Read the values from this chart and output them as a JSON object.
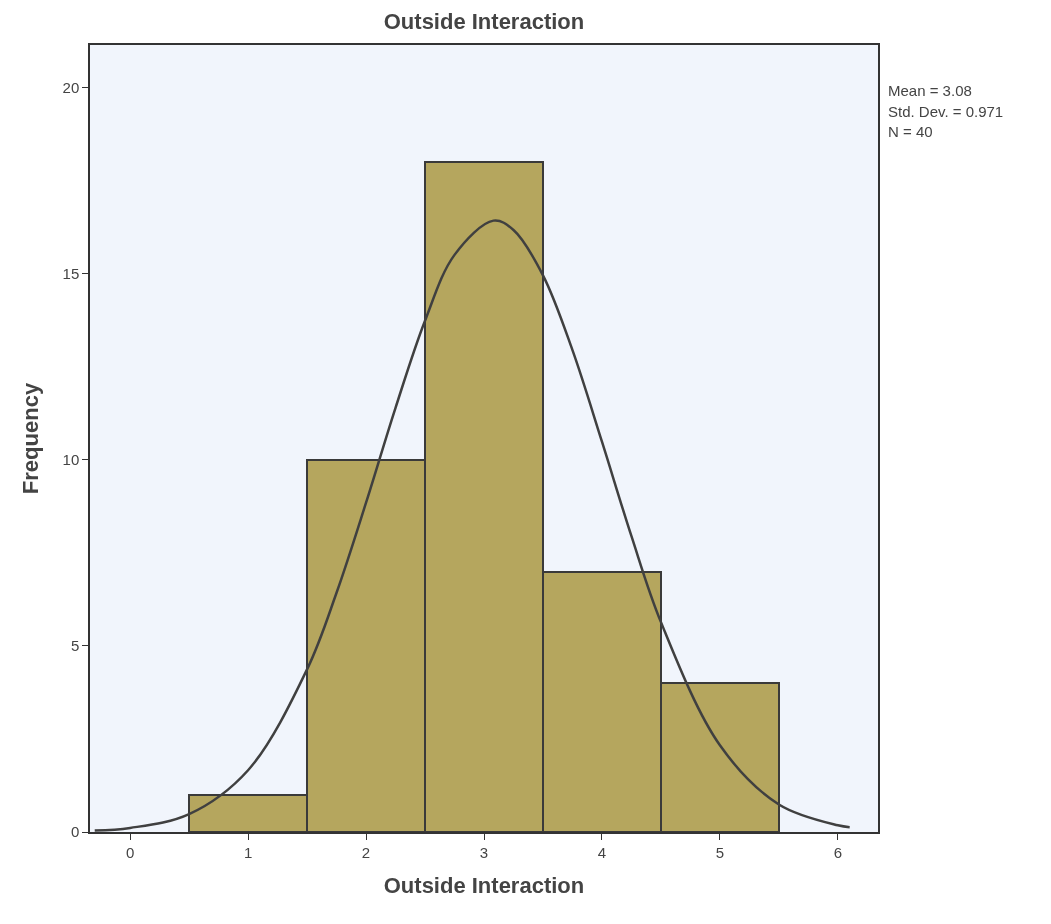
{
  "chart_data": {
    "type": "histogram",
    "title": "Outside Interaction",
    "xlabel": "Outside Interaction",
    "ylabel": "Frequency",
    "bins": [
      0.5,
      1.5,
      2.5,
      3.5,
      4.5,
      5.5
    ],
    "values": [
      1,
      10,
      18,
      7,
      4
    ],
    "color": "#b5a65e",
    "series": [
      {
        "type": "line",
        "color": "#404040",
        "x": [
          -0.3,
          0,
          0.5,
          1,
          1.5,
          1.75,
          2,
          2.25,
          2.5,
          2.75,
          3.08,
          3.25,
          3.5,
          3.75,
          4,
          4.25,
          4.5,
          5,
          5.5,
          6,
          6.1
        ],
        "values": [
          0.04,
          0.11,
          0.48,
          1.66,
          4.37,
          6.43,
          8.85,
          11.4,
          13.74,
          15.51,
          16.43,
          16.18,
          14.96,
          12.95,
          10.49,
          7.95,
          5.64,
          2.33,
          0.74,
          0.18,
          0.13
        ]
      }
    ],
    "xlim": [
      -0.34,
      6.34
    ],
    "xticks": [
      0,
      1,
      2,
      3,
      4,
      5,
      6
    ],
    "ylim": [
      0,
      21.15
    ],
    "yticks": [
      0,
      5,
      10,
      15,
      20
    ],
    "grid": false,
    "annotations": [
      "Mean = 3.08",
      "Std. Dev. = 0.971",
      "N = 40"
    ]
  }
}
